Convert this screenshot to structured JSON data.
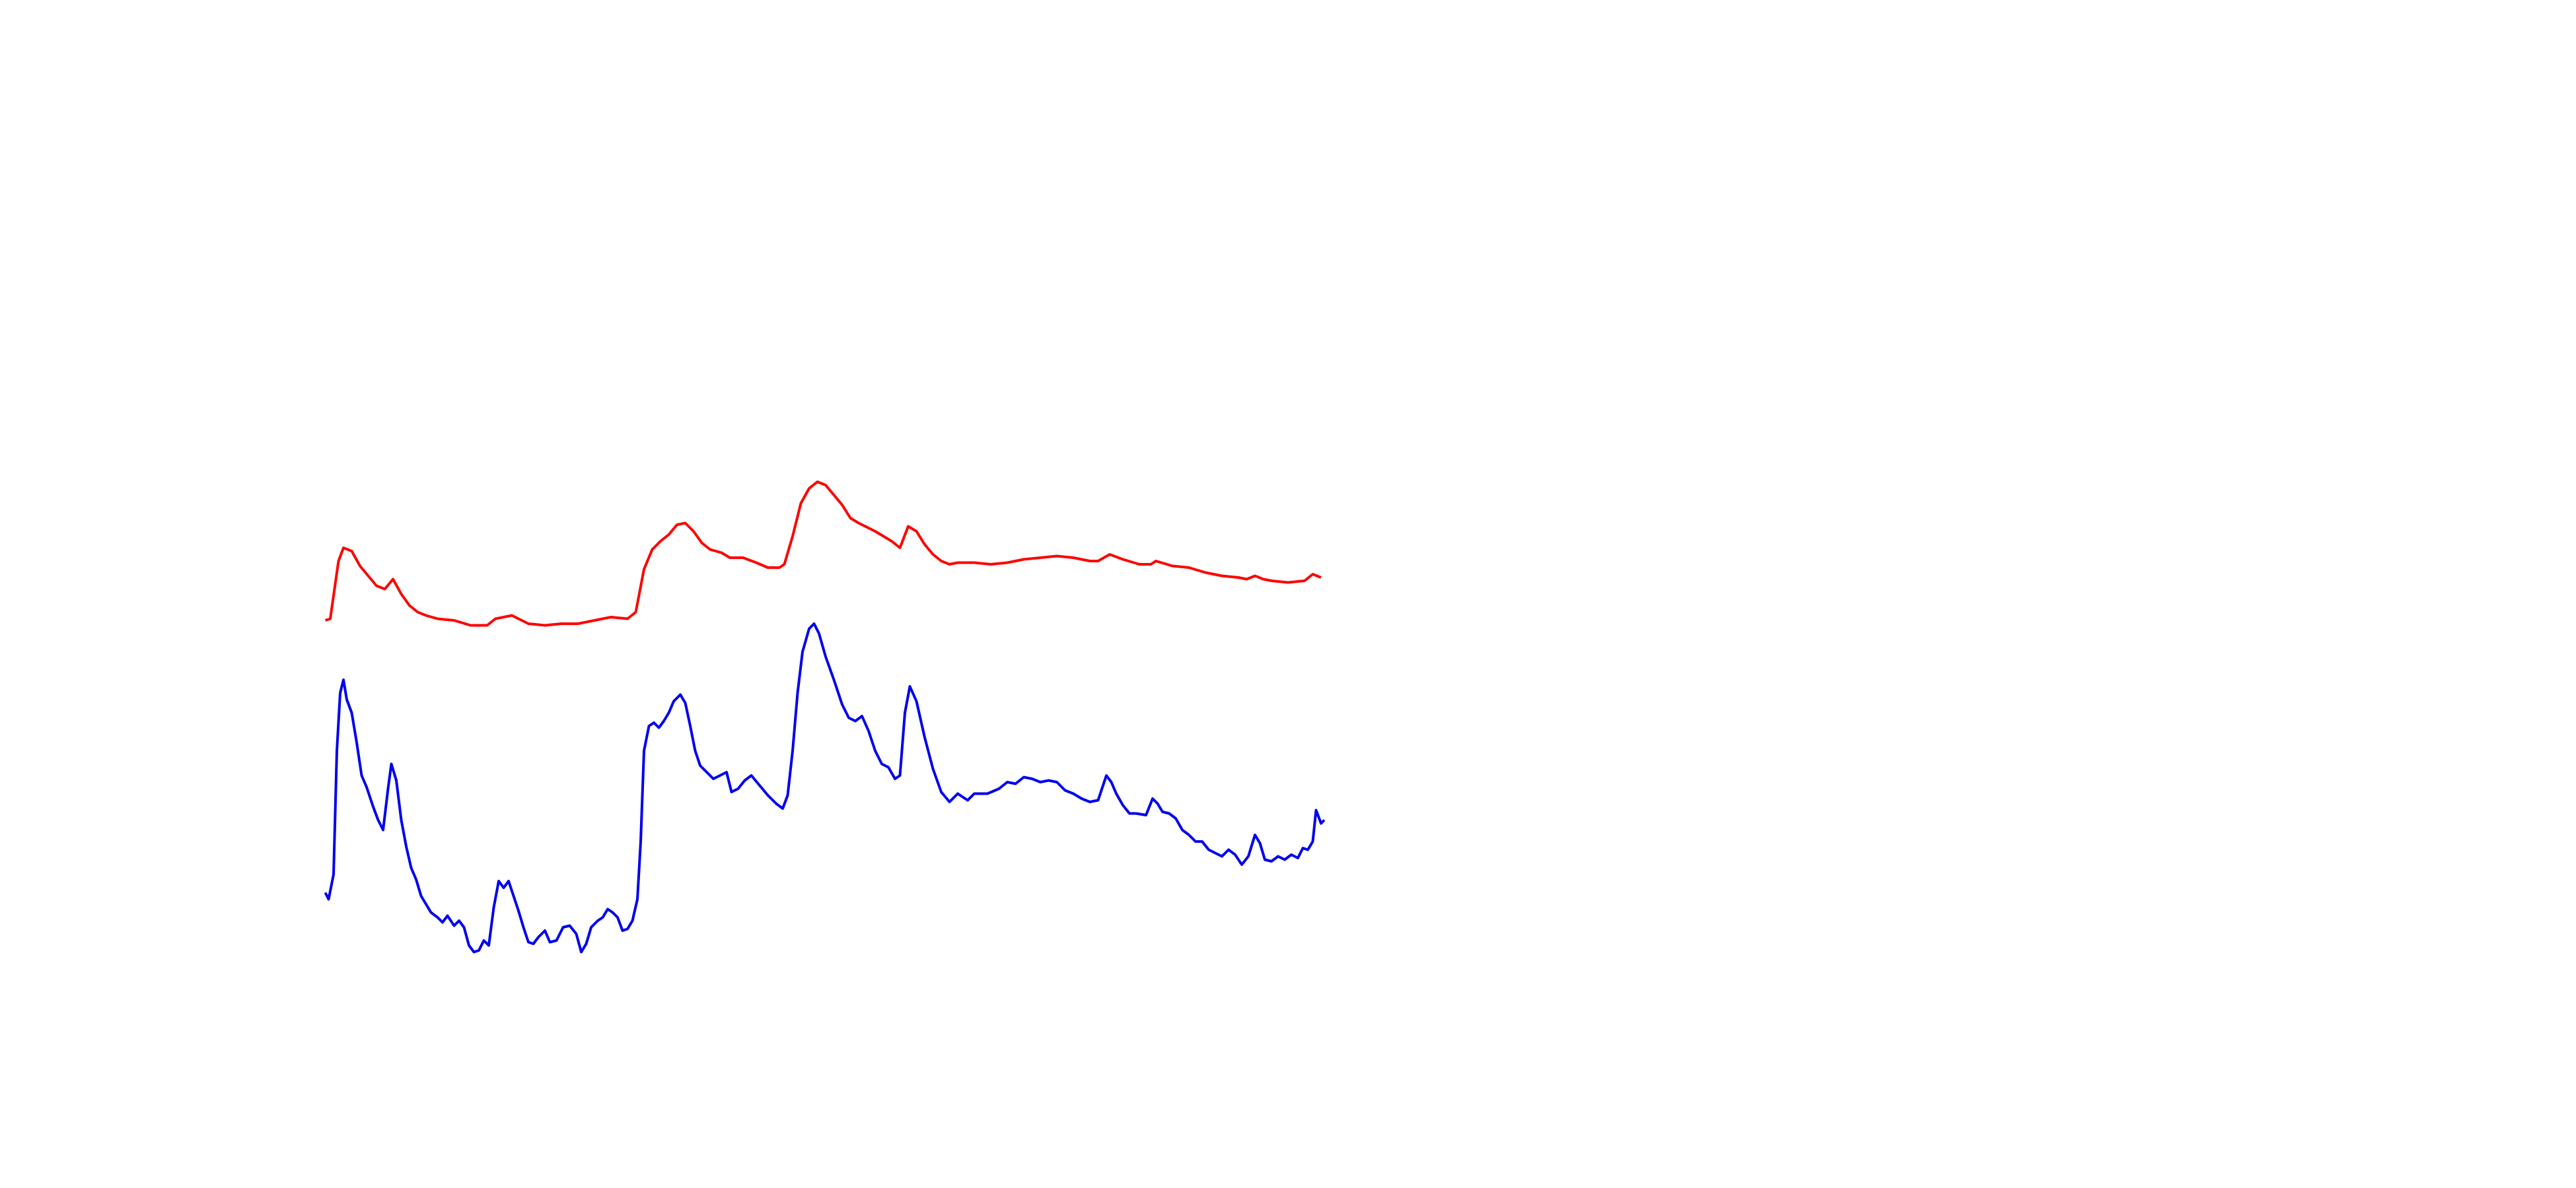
{
  "chart_data": {
    "type": "line",
    "xlim": [
      0,
      1560
    ],
    "ylim": [
      720,
      0
    ],
    "grid": false,
    "series": [
      {
        "color": "#ff0000",
        "x": [
          197,
          200,
          205,
          208,
          213,
          218,
          223,
          228,
          233,
          238,
          243,
          248,
          253,
          258,
          265,
          275,
          285,
          295,
          300,
          310,
          320,
          330,
          340,
          350,
          360,
          370,
          380,
          385,
          390,
          395,
          400,
          405,
          410,
          415,
          420,
          425,
          430,
          437,
          442,
          450,
          458,
          465,
          472,
          475,
          480,
          485,
          490,
          495,
          500,
          505,
          510,
          515,
          520,
          530,
          540,
          545,
          550,
          555,
          560,
          565,
          570,
          575,
          580,
          590,
          600,
          610,
          620,
          630,
          640,
          650,
          660,
          665,
          672,
          680,
          690,
          697,
          700,
          710,
          720,
          730,
          740,
          750,
          755,
          760,
          765,
          770,
          780,
          790,
          795,
          800
        ],
        "values": [
          376,
          375,
          340,
          332,
          334,
          343,
          349,
          355,
          357,
          351,
          360,
          367,
          371,
          373,
          375,
          376,
          379,
          379,
          375,
          373,
          378,
          379,
          378,
          378,
          376,
          374,
          375,
          371,
          345,
          333,
          328,
          324,
          318,
          317,
          322,
          329,
          333,
          335,
          338,
          338,
          341,
          344,
          344,
          342,
          325,
          305,
          296,
          292,
          294,
          300,
          306,
          314,
          317,
          322,
          328,
          332,
          319,
          322,
          330,
          336,
          340,
          342,
          341,
          341,
          342,
          341,
          339,
          338,
          337,
          338,
          340,
          340,
          336,
          339,
          342,
          342,
          340,
          343,
          344,
          347,
          349,
          350,
          351,
          349,
          351,
          352,
          353,
          352,
          348,
          350
        ]
      },
      {
        "color": "#0000ee",
        "x": [
          197,
          199,
          202,
          204,
          206,
          208,
          210,
          213,
          216,
          219,
          222,
          226,
          229,
          232,
          235,
          237,
          240,
          243,
          246,
          249,
          252,
          255,
          258,
          261,
          265,
          268,
          271,
          275,
          278,
          281,
          284,
          287,
          290,
          293,
          296,
          299,
          302,
          305,
          308,
          311,
          314,
          317,
          320,
          323,
          326,
          330,
          333,
          337,
          341,
          345,
          349,
          352,
          355,
          358,
          362,
          365,
          368,
          371,
          374,
          377,
          380,
          383,
          386,
          388,
          390,
          393,
          396,
          399,
          402,
          405,
          408,
          412,
          415,
          418,
          421,
          424,
          428,
          432,
          436,
          440,
          443,
          447,
          451,
          455,
          460,
          465,
          470,
          474,
          477,
          480,
          483,
          486,
          490,
          493,
          496,
          500,
          505,
          510,
          514,
          518,
          522,
          526,
          530,
          534,
          538,
          542,
          545,
          548,
          551,
          555,
          560,
          565,
          570,
          575,
          580,
          586,
          590,
          598,
          605,
          610,
          615,
          620,
          625,
          630,
          635,
          640,
          645,
          650,
          655,
          660,
          665,
          670,
          673,
          676,
          680,
          684,
          688,
          694,
          698,
          701,
          704,
          708,
          712,
          716,
          720,
          724,
          728,
          732,
          736,
          740,
          744,
          748,
          752,
          756,
          760,
          763,
          766,
          770,
          774,
          778,
          782,
          786,
          789,
          792,
          795,
          797,
          800,
          802
        ],
        "values": [
          541,
          545,
          530,
          455,
          420,
          412,
          424,
          432,
          450,
          470,
          477,
          489,
          497,
          503,
          478,
          463,
          473,
          497,
          513,
          526,
          533,
          543,
          548,
          553,
          556,
          559,
          555,
          561,
          558,
          562,
          573,
          577,
          576,
          570,
          573,
          550,
          534,
          538,
          534,
          543,
          552,
          562,
          571,
          572,
          568,
          564,
          571,
          570,
          562,
          561,
          566,
          577,
          572,
          562,
          558,
          556,
          551,
          553,
          556,
          564,
          563,
          558,
          545,
          510,
          455,
          440,
          438,
          441,
          437,
          432,
          425,
          421,
          426,
          440,
          455,
          464,
          468,
          472,
          470,
          468,
          480,
          478,
          473,
          470,
          476,
          482,
          487,
          490,
          482,
          455,
          420,
          395,
          381,
          378,
          384,
          398,
          412,
          427,
          435,
          437,
          434,
          443,
          455,
          463,
          465,
          472,
          470,
          432,
          416,
          425,
          447,
          466,
          480,
          486,
          481,
          485,
          481,
          481,
          478,
          474,
          475,
          471,
          472,
          474,
          473,
          474,
          479,
          481,
          484,
          486,
          485,
          470,
          474,
          481,
          488,
          493,
          493,
          494,
          484,
          487,
          492,
          493,
          496,
          503,
          506,
          510,
          510,
          515,
          517,
          519,
          515,
          518,
          524,
          519,
          506,
          511,
          521,
          522,
          519,
          521,
          518,
          520,
          514,
          515,
          510,
          491,
          499,
          497
        ]
      }
    ]
  }
}
